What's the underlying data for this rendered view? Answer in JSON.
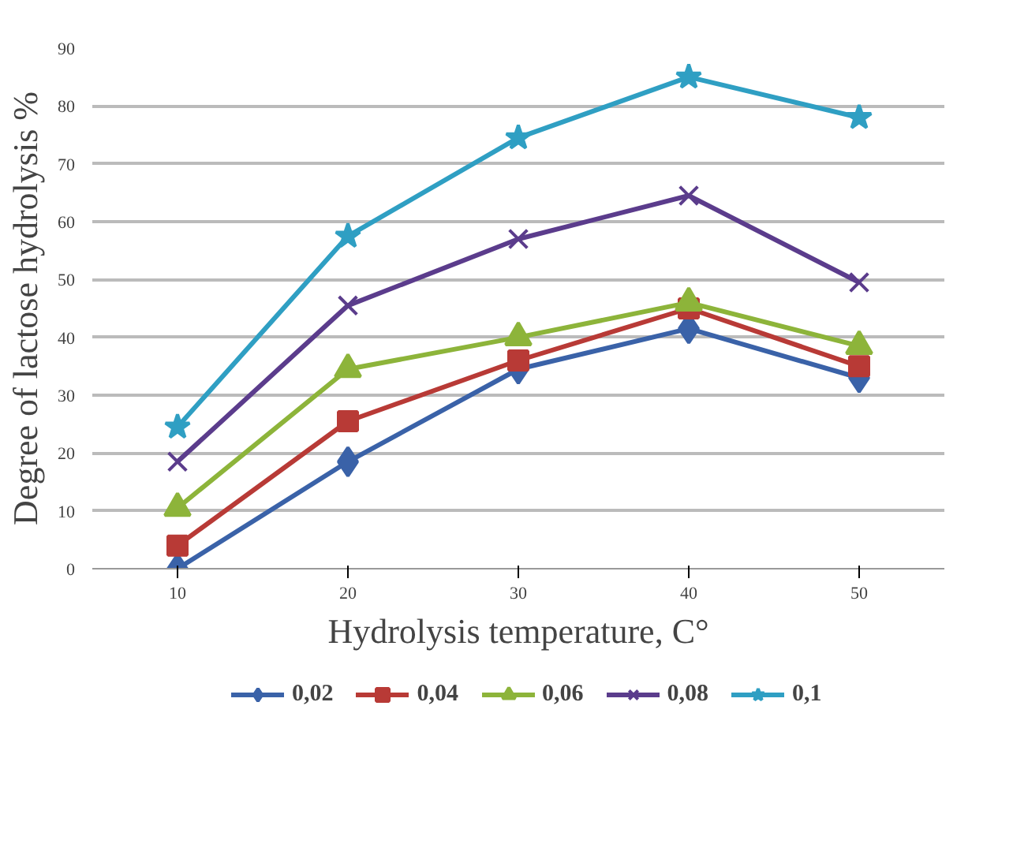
{
  "chart_data": {
    "type": "line",
    "xlabel": "Hydrolysis temperature, C°",
    "ylabel": "Degree of lactose hydrolysis %",
    "categories": [
      "10",
      "20",
      "30",
      "40",
      "50"
    ],
    "ylim": [
      0,
      90
    ],
    "yticks": [
      0,
      10,
      20,
      30,
      40,
      50,
      60,
      70,
      80,
      90
    ],
    "grid": "y",
    "legend": "bottom",
    "line_style": "solid",
    "series": [
      {
        "name": "0,02",
        "color": "#3a62a8",
        "marker": "diamond",
        "values": [
          0,
          18.5,
          34.5,
          41.5,
          33
        ]
      },
      {
        "name": "0,04",
        "color": "#b83a36",
        "marker": "square",
        "values": [
          4,
          25.5,
          36,
          45,
          35
        ]
      },
      {
        "name": "0,06",
        "color": "#8db43a",
        "marker": "triangle",
        "values": [
          10.5,
          34.5,
          40,
          46,
          38.5
        ]
      },
      {
        "name": "0,08",
        "color": "#5b3c8c",
        "marker": "cross",
        "values": [
          18.5,
          45.5,
          57,
          64.5,
          49.5
        ]
      },
      {
        "name": "0,1",
        "color": "#2f9fc3",
        "marker": "star",
        "values": [
          24.5,
          57.5,
          74.5,
          85,
          78
        ]
      }
    ]
  }
}
